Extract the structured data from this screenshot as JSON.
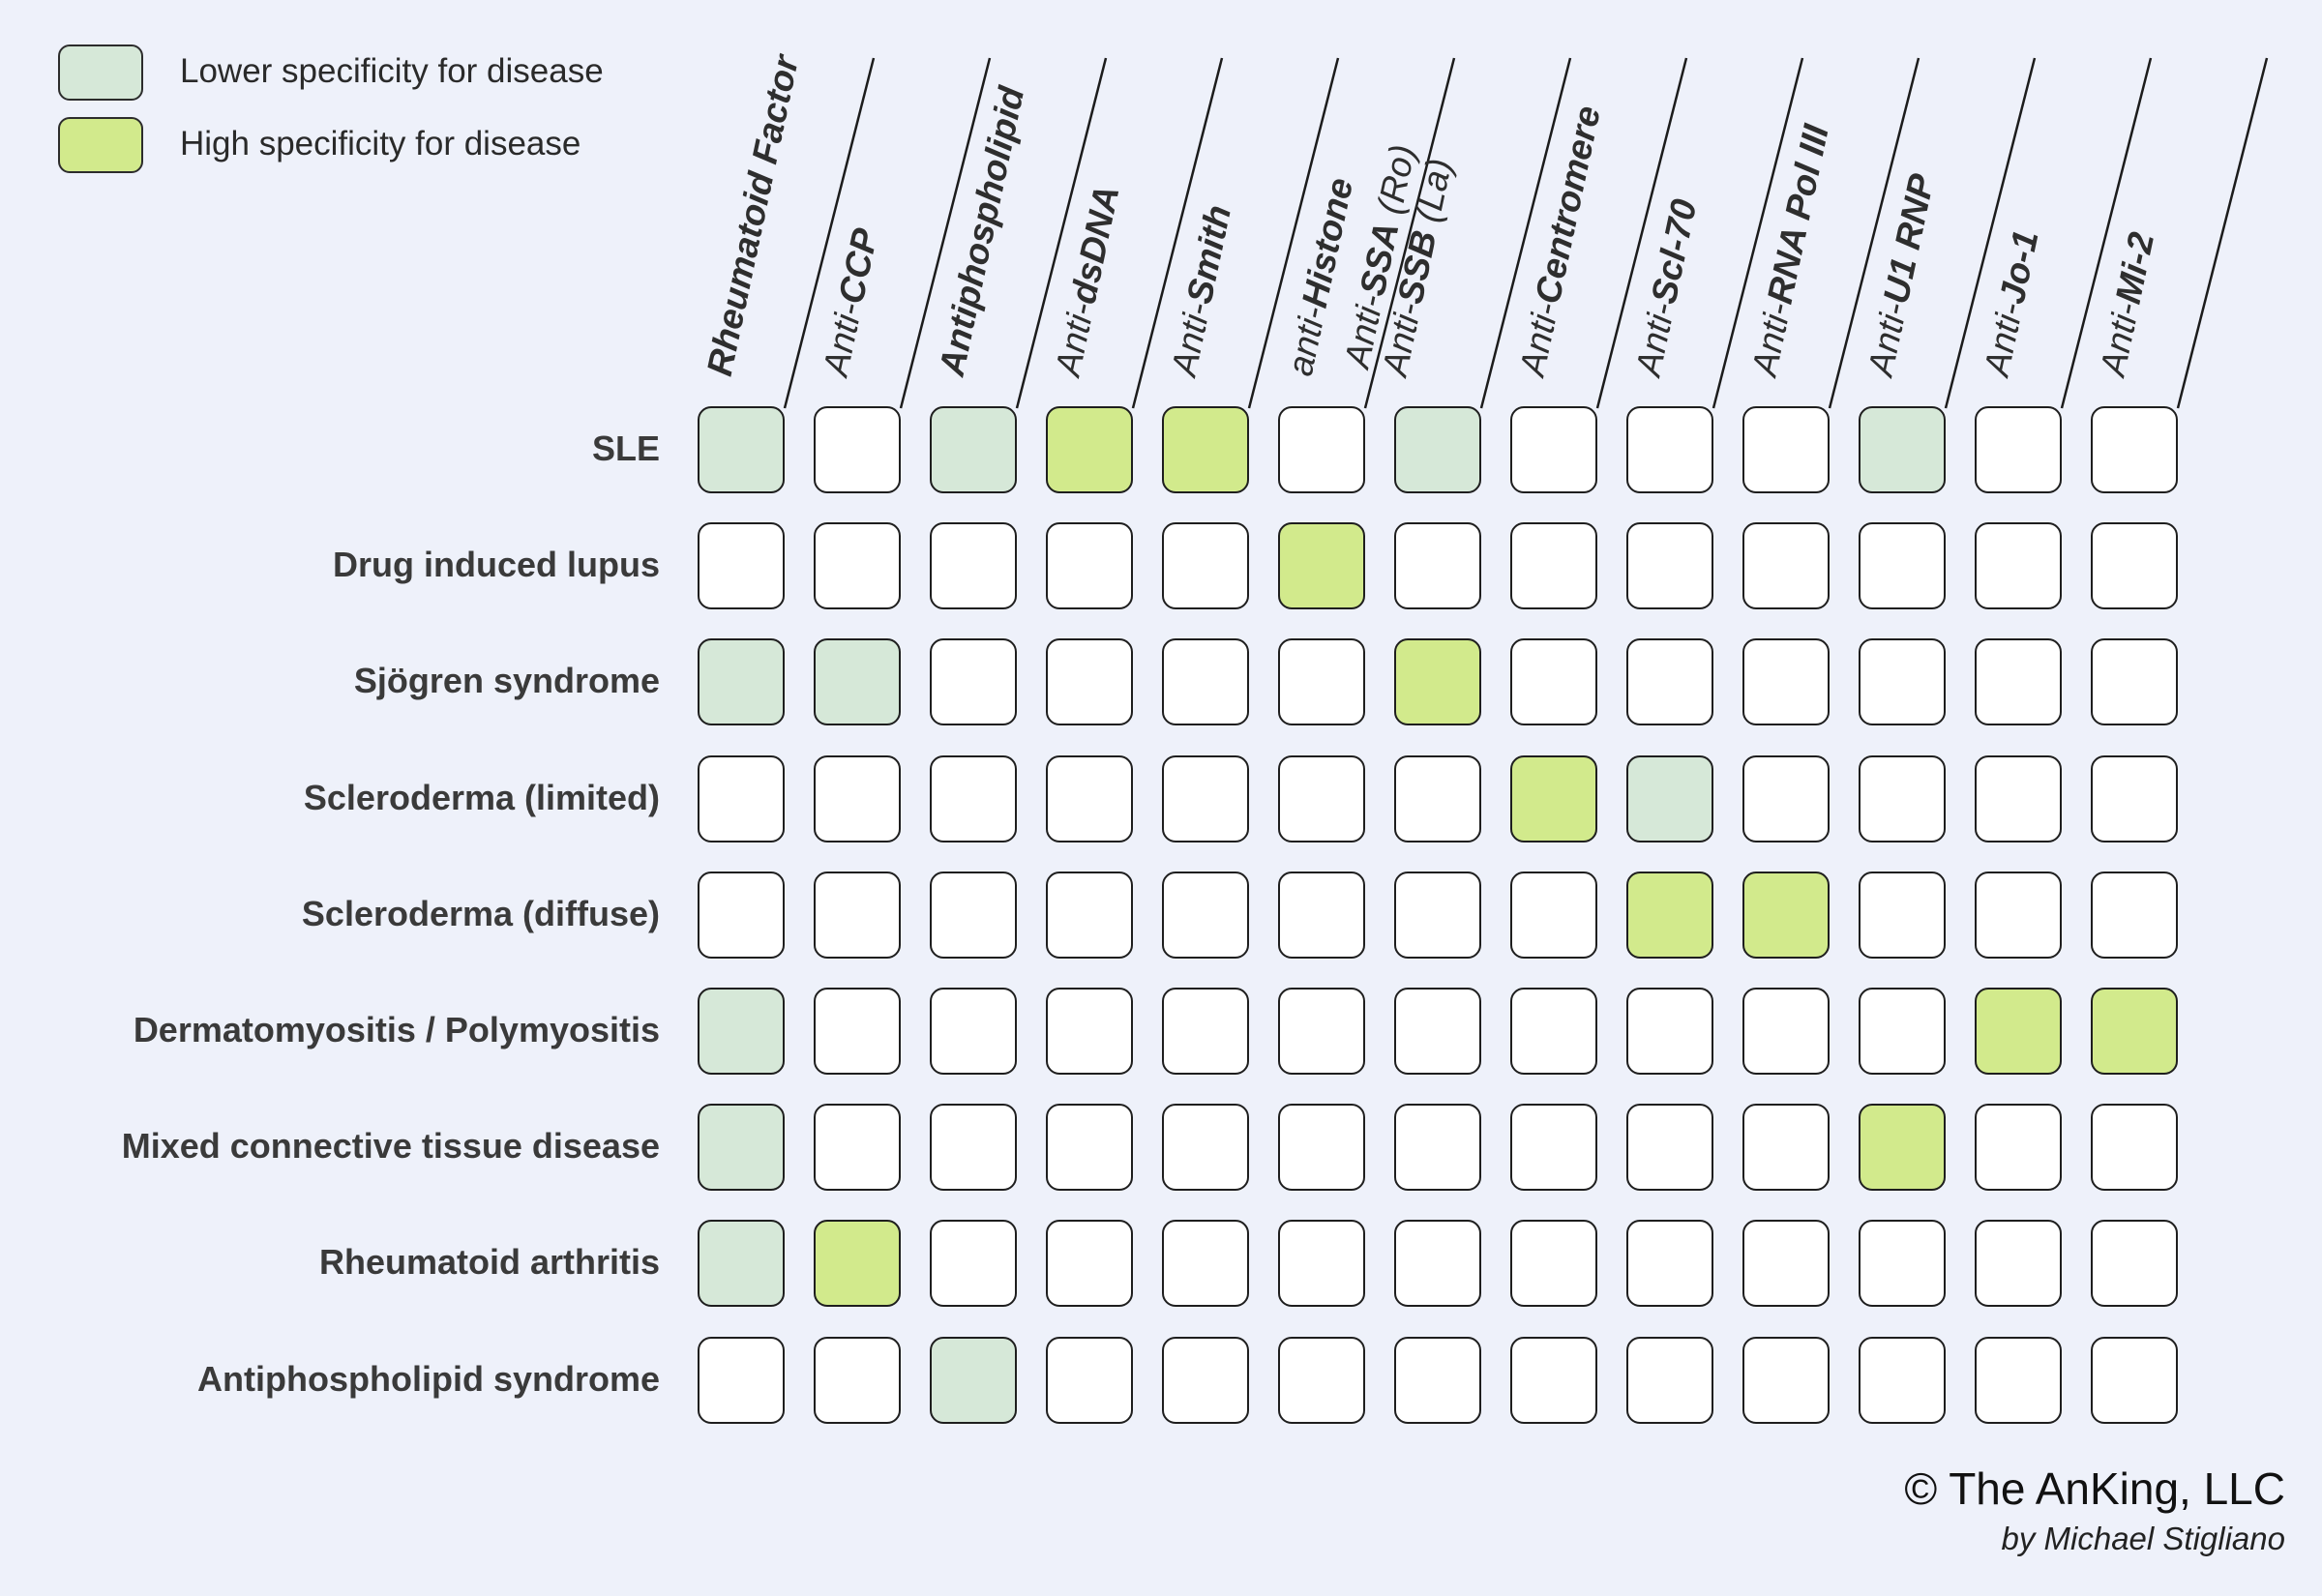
{
  "colors": {
    "background": "#eef1fa",
    "none": "#ffffff",
    "lower": "#d6e8d8",
    "high": "#d2ea8c"
  },
  "legend": [
    {
      "level": "lower",
      "label": "Lower specificity for disease"
    },
    {
      "level": "high",
      "label": "High specificity for disease"
    }
  ],
  "columns": [
    {
      "parts": [
        {
          "t": "Rheumatoid Factor",
          "b": true
        }
      ]
    },
    {
      "parts": [
        {
          "t": "Anti-",
          "b": false
        },
        {
          "t": "CCP",
          "b": true
        }
      ]
    },
    {
      "parts": [
        {
          "t": "Antiphospholipid",
          "b": true
        }
      ]
    },
    {
      "parts": [
        {
          "t": "Anti-",
          "b": false
        },
        {
          "t": "dsDNA",
          "b": true
        }
      ]
    },
    {
      "parts": [
        {
          "t": "Anti-",
          "b": false
        },
        {
          "t": "Smith",
          "b": true
        }
      ]
    },
    {
      "parts": [
        {
          "t": "anti-",
          "b": false
        },
        {
          "t": "Histone",
          "b": true
        }
      ]
    },
    {
      "lines": [
        [
          {
            "t": "Anti-",
            "b": false
          },
          {
            "t": "SSA",
            "b": true
          },
          {
            "t": " (Ro)",
            "b": false
          }
        ],
        [
          {
            "t": "Anti-",
            "b": false
          },
          {
            "t": "SSB",
            "b": true
          },
          {
            "t": " (La)",
            "b": false
          }
        ]
      ]
    },
    {
      "parts": [
        {
          "t": "Anti-",
          "b": false
        },
        {
          "t": "Centromere",
          "b": true
        }
      ]
    },
    {
      "parts": [
        {
          "t": "Anti-",
          "b": false
        },
        {
          "t": "Scl-70",
          "b": true
        }
      ]
    },
    {
      "parts": [
        {
          "t": "Anti-",
          "b": false
        },
        {
          "t": "RNA Pol III",
          "b": true
        }
      ]
    },
    {
      "parts": [
        {
          "t": "Anti-",
          "b": false
        },
        {
          "t": "U1 RNP",
          "b": true
        }
      ]
    },
    {
      "parts": [
        {
          "t": "Anti-",
          "b": false
        },
        {
          "t": "Jo-1",
          "b": true
        }
      ]
    },
    {
      "parts": [
        {
          "t": "Anti-",
          "b": false
        },
        {
          "t": "Mi-2",
          "b": true
        }
      ]
    }
  ],
  "rows": [
    {
      "label": "SLE",
      "cells": [
        "lower",
        "none",
        "lower",
        "high",
        "high",
        "none",
        "lower",
        "none",
        "none",
        "none",
        "lower",
        "none",
        "none"
      ]
    },
    {
      "label": "Drug induced lupus",
      "cells": [
        "none",
        "none",
        "none",
        "none",
        "none",
        "high",
        "none",
        "none",
        "none",
        "none",
        "none",
        "none",
        "none"
      ]
    },
    {
      "label": "Sjögren syndrome",
      "cells": [
        "lower",
        "lower",
        "none",
        "none",
        "none",
        "none",
        "high",
        "none",
        "none",
        "none",
        "none",
        "none",
        "none"
      ]
    },
    {
      "label": "Scleroderma (limited)",
      "cells": [
        "none",
        "none",
        "none",
        "none",
        "none",
        "none",
        "none",
        "high",
        "lower",
        "none",
        "none",
        "none",
        "none"
      ]
    },
    {
      "label": "Scleroderma (diffuse)",
      "cells": [
        "none",
        "none",
        "none",
        "none",
        "none",
        "none",
        "none",
        "none",
        "high",
        "high",
        "none",
        "none",
        "none"
      ]
    },
    {
      "label": "Dermatomyositis / Polymyositis",
      "cells": [
        "lower",
        "none",
        "none",
        "none",
        "none",
        "none",
        "none",
        "none",
        "none",
        "none",
        "none",
        "high",
        "high"
      ]
    },
    {
      "label": "Mixed connective tissue disease",
      "cells": [
        "lower",
        "none",
        "none",
        "none",
        "none",
        "none",
        "none",
        "none",
        "none",
        "none",
        "high",
        "none",
        "none"
      ]
    },
    {
      "label": "Rheumatoid arthritis",
      "cells": [
        "lower",
        "high",
        "none",
        "none",
        "none",
        "none",
        "none",
        "none",
        "none",
        "none",
        "none",
        "none",
        "none"
      ]
    },
    {
      "label": "Antiphospholipid syndrome",
      "cells": [
        "none",
        "none",
        "lower",
        "none",
        "none",
        "none",
        "none",
        "none",
        "none",
        "none",
        "none",
        "none",
        "none"
      ]
    }
  ],
  "credit": {
    "main": "© The AnKing, LLC",
    "sub": "by Michael Stigliano"
  }
}
